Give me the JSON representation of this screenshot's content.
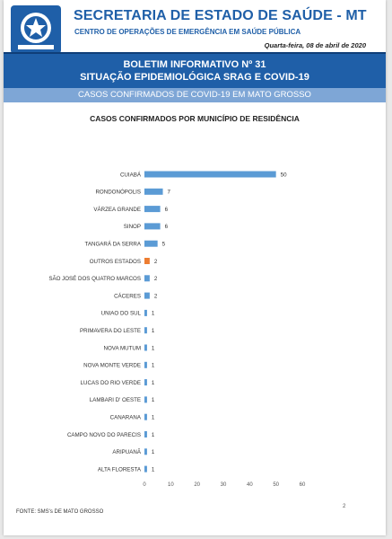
{
  "header": {
    "title": "SECRETARIA DE ESTADO DE SAÚDE - MT",
    "subtitle": "CENTRO DE OPERAÇÕES DE EMERGÊNCIA EM SAÚDE PÚBLICA",
    "date": "Quarta-feira, 08 de abril de 2020"
  },
  "banner": {
    "line1": "BOLETIM INFORMATIVO Nº 31",
    "line2": "SITUAÇÃO EPIDEMIOLÓGICA SRAG E COVID-19"
  },
  "subbanner": "CASOS CONFIRMADOS DE COVID-19 EM MATO GROSSO",
  "colors": {
    "primary": "#1f5fa8",
    "bar": "#5b9bd5",
    "highlight": "#ed7d31",
    "subbanner": "#7ea6d6"
  },
  "chart_data": {
    "type": "bar",
    "orientation": "horizontal",
    "title": "CASOS CONFIRMADOS POR MUNICÍPIO DE RESIDÊNCIA",
    "categories": [
      "CUIABÁ",
      "RONDONÓPOLIS",
      "VÁRZEA GRANDE",
      "SINOP",
      "TANGARÁ DA SERRA",
      "OUTROS ESTADOS",
      "SÃO JOSÉ DOS QUATRO MARCOS",
      "CÁCERES",
      "UNIAO DO SUL",
      "PRIMAVERA DO LESTE",
      "NOVA MUTUM",
      "NOVA MONTE VERDE",
      "LUCAS DO RIO VERDE",
      "LAMBARI D' OESTE",
      "CANARANA",
      "CAMPO NOVO DO PARECIS",
      "ARIPUANÃ",
      "ALTA FLORESTA"
    ],
    "values": [
      50,
      7,
      6,
      6,
      5,
      2,
      2,
      2,
      1,
      1,
      1,
      1,
      1,
      1,
      1,
      1,
      1,
      1
    ],
    "highlight_category": "OUTROS ESTADOS",
    "xlim": [
      0,
      60
    ],
    "xticks": [
      0,
      10,
      20,
      30,
      40,
      50,
      60
    ],
    "grid": false,
    "legend": "none",
    "data_labels": true
  },
  "footer": {
    "source": "FONTE: SMS's DE MATO GROSSO",
    "page": "2"
  }
}
